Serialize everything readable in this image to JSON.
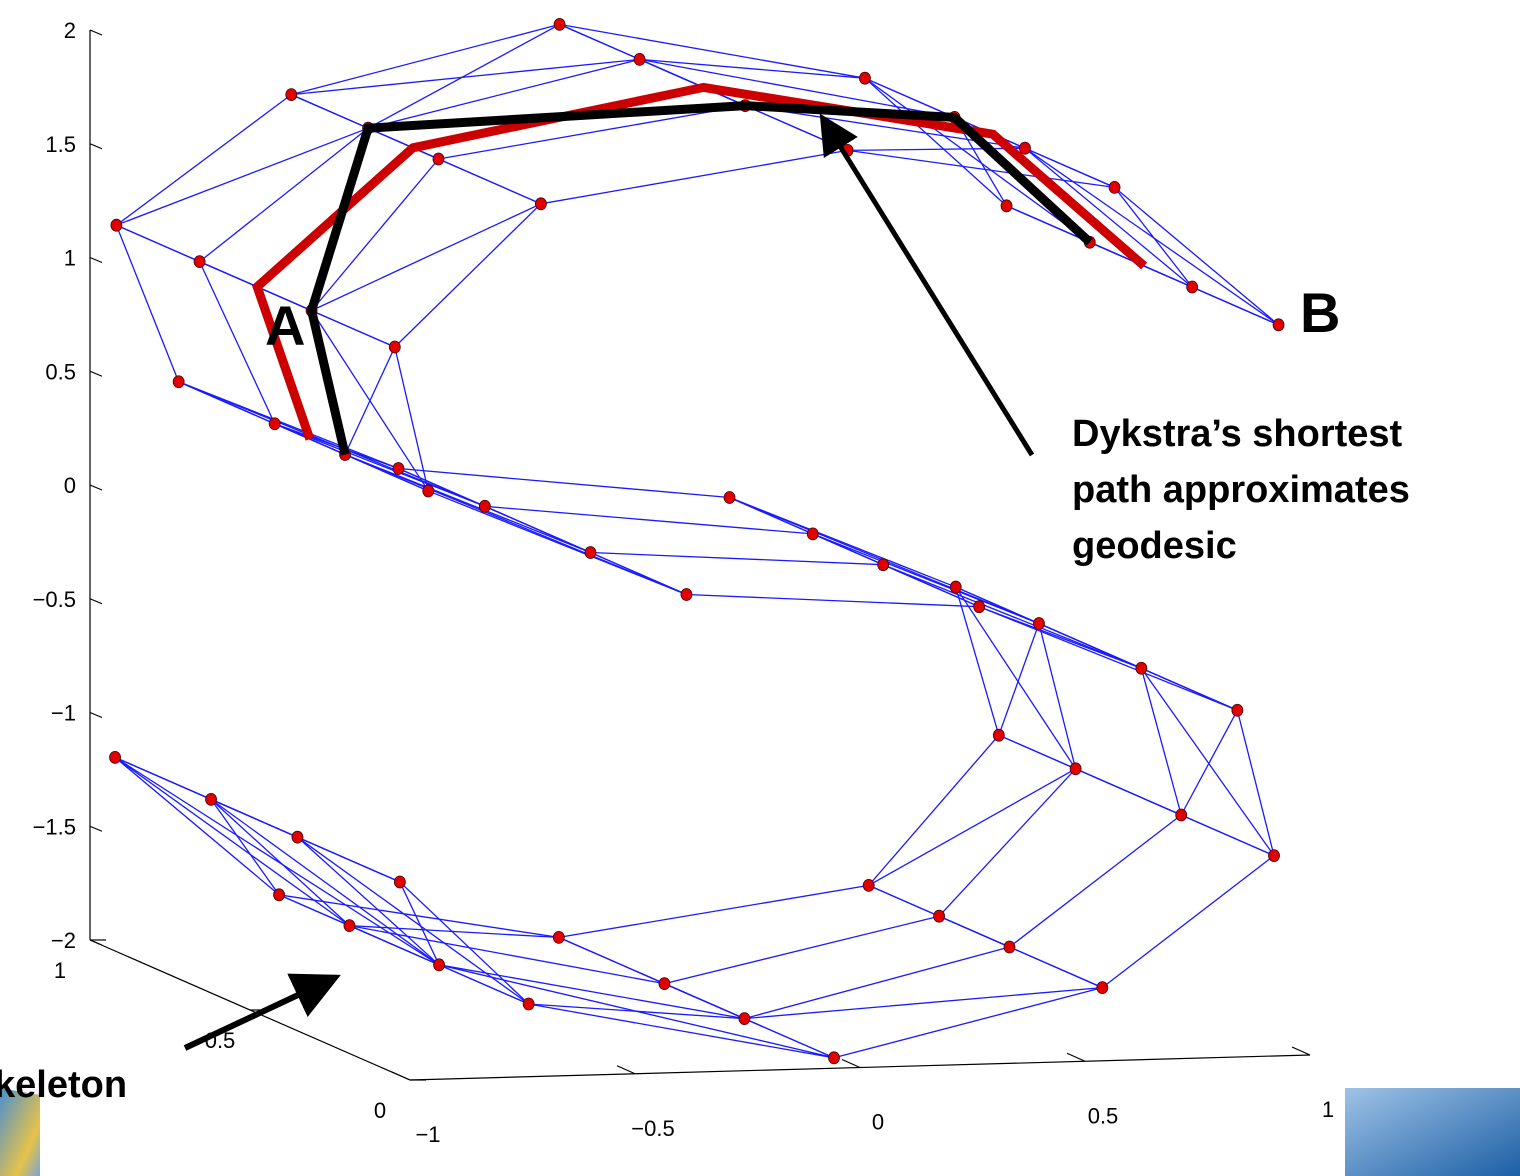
{
  "chart_data": {
    "type": "scatter3d",
    "xlim": [
      -1,
      1
    ],
    "ylim": [
      0,
      1
    ],
    "zlim": [
      -2,
      2
    ],
    "xticks": [
      {
        "value": -1,
        "label": "−1"
      },
      {
        "value": -0.5,
        "label": "−0.5"
      },
      0,
      0.5,
      1
    ],
    "yticks": [
      0,
      0.5,
      1
    ],
    "zticks": [
      {
        "value": -2,
        "label": "−2"
      },
      {
        "value": -1.5,
        "label": "−1.5"
      },
      {
        "value": -1,
        "label": "−1"
      },
      {
        "value": -0.5,
        "label": "−0.5"
      },
      0,
      0.5,
      1,
      1.5,
      2
    ],
    "point_color": "#e00000",
    "edge_color": "#1a1aff",
    "x": [
      0.987,
      0.987,
      0.987,
      0.987,
      0.651,
      0.651,
      0.651,
      0.651,
      0.008,
      0.008,
      0.008,
      0.008,
      -0.638,
      -0.638,
      -0.638,
      -0.638,
      -0.984,
      -0.984,
      -0.984,
      -0.984,
      -0.867,
      -0.867,
      -0.867,
      -0.867,
      -0.343,
      -0.343,
      -0.343,
      -0.343,
      0.343,
      0.343,
      0.343,
      0.343,
      0.867,
      0.867,
      0.867,
      0.867,
      0.984,
      0.984,
      0.984,
      0.984,
      0.638,
      0.638,
      0.638,
      0.638,
      -0.008,
      -0.008,
      -0.008,
      -0.008,
      -0.651,
      -0.651,
      -0.651,
      -0.651,
      -0.987,
      -0.987,
      -0.987,
      -0.987
    ],
    "y": [
      0.08,
      0.35,
      0.67,
      0.93,
      0.12,
      0.4,
      0.62,
      0.9,
      0.05,
      0.37,
      0.7,
      0.95,
      0.1,
      0.42,
      0.64,
      0.88,
      0.07,
      0.33,
      0.68,
      0.94,
      0.13,
      0.39,
      0.61,
      0.91,
      0.06,
      0.36,
      0.69,
      0.96,
      0.11,
      0.41,
      0.63,
      0.89,
      0.04,
      0.34,
      0.66,
      0.92,
      0.09,
      0.38,
      0.71,
      0.95,
      0.14,
      0.43,
      0.65,
      0.87,
      0.07,
      0.35,
      0.6,
      0.93,
      0.12,
      0.4,
      0.68,
      0.9,
      0.05,
      0.37,
      0.64,
      0.94
    ],
    "z": [
      1.161,
      1.161,
      1.161,
      1.161,
      1.759,
      1.759,
      1.759,
      1.759,
      2,
      2,
      2,
      2,
      1.77,
      1.77,
      1.77,
      1.77,
      1.178,
      1.178,
      1.178,
      1.178,
      0.502,
      0.502,
      0.502,
      0.502,
      0.061,
      0.061,
      0.061,
      0.061,
      -0.061,
      -0.061,
      -0.061,
      -0.061,
      -0.502,
      -0.502,
      -0.502,
      -0.502,
      -1.178,
      -1.178,
      -1.178,
      -1.178,
      -1.77,
      -1.77,
      -1.77,
      -1.77,
      -2,
      -2,
      -2,
      -2,
      -1.759,
      -1.759,
      -1.759,
      -1.759,
      -1.161,
      -1.161,
      -1.161,
      -1.161
    ],
    "geodesic": {
      "color": "#cc0000",
      "x": [
        -0.867,
        -0.984,
        -0.638,
        0.008,
        0.651,
        0.987
      ],
      "y": [
        0.5,
        0.5,
        0.5,
        0.5,
        0.5,
        0.5
      ],
      "z": [
        0.502,
        1.178,
        1.77,
        2,
        1.759,
        1.161
      ]
    },
    "path": {
      "color": "#000000",
      "x": [
        -0.867,
        -0.984,
        -0.638,
        0.008,
        0.651,
        0.987
      ],
      "y": [
        0.39,
        0.33,
        0.64,
        0.37,
        0.62,
        0.67
      ],
      "z": [
        0.502,
        1.178,
        1.77,
        2,
        1.759,
        1.161
      ]
    },
    "annotations": {
      "a": "A",
      "b": "B",
      "note": [
        "Dykstra’s shortest",
        "path approximates",
        "geodesic"
      ],
      "skeleton": "keleton"
    }
  }
}
